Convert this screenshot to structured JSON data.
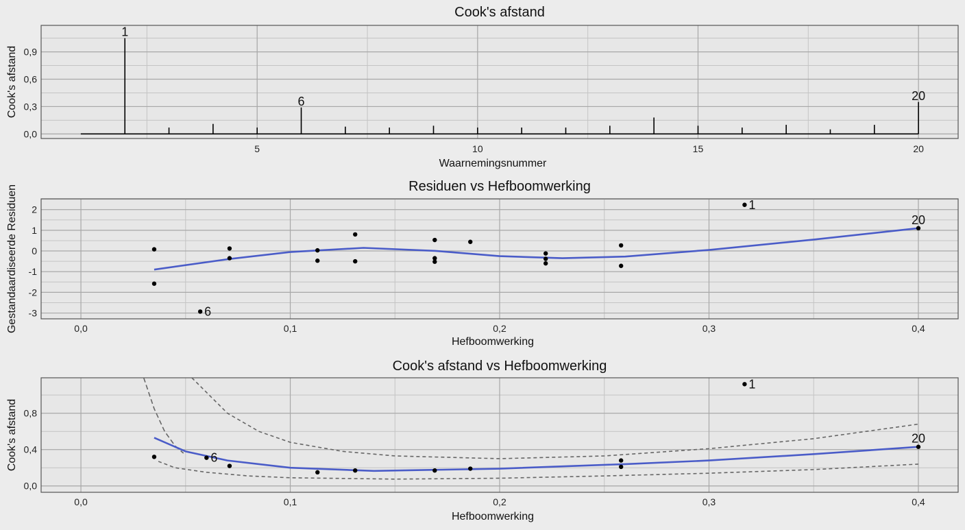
{
  "colors": {
    "background": "#ececec",
    "panel": "#e7e7e7",
    "smooth": "#4a5cc8",
    "points": "#000000",
    "contour": "#666666"
  },
  "chart_data": [
    {
      "type": "bar",
      "title": "Cook's afstand",
      "xlabel": "Waarnemingsnummer",
      "ylabel": "Cook's afstand",
      "xlim": [
        0.1,
        20.9
      ],
      "ylim": [
        -0.05,
        1.19
      ],
      "grid": true,
      "xticks": [
        {
          "v": 5,
          "label": "5"
        },
        {
          "v": 10,
          "label": "10"
        },
        {
          "v": 15,
          "label": "15"
        },
        {
          "v": 20,
          "label": "20"
        }
      ],
      "yticks": [
        {
          "v": 0,
          "label": "0,0"
        },
        {
          "v": 0.3,
          "label": "0,3"
        },
        {
          "v": 0.6,
          "label": "0,6"
        },
        {
          "v": 0.9,
          "label": "0,9"
        }
      ],
      "x": [
        1,
        2,
        3,
        4,
        5,
        6,
        7,
        8,
        9,
        10,
        11,
        12,
        13,
        14,
        15,
        16,
        17,
        18,
        19,
        20
      ],
      "values": [
        0.0,
        1.05,
        0.07,
        0.11,
        0.07,
        0.29,
        0.08,
        0.07,
        0.09,
        0.07,
        0.07,
        0.07,
        0.09,
        0.18,
        0.09,
        0.07,
        0.1,
        0.05,
        0.1,
        0.35
      ],
      "annotations": [
        {
          "x": 2,
          "y": 1.05,
          "label": "1"
        },
        {
          "x": 6,
          "y": 0.29,
          "label": "6"
        },
        {
          "x": 20,
          "y": 0.35,
          "label": "20"
        }
      ]
    },
    {
      "type": "scatter",
      "title": "Residuen vs Hefboomwerking",
      "xlabel": "Hefboomwerking",
      "ylabel": "Gestandaardiseerde Residuen",
      "xlim": [
        -0.019,
        0.419
      ],
      "ylim": [
        -3.28,
        2.52
      ],
      "grid": true,
      "xticks": [
        {
          "v": 0,
          "label": "0,0"
        },
        {
          "v": 0.1,
          "label": "0,1"
        },
        {
          "v": 0.2,
          "label": "0,2"
        },
        {
          "v": 0.3,
          "label": "0,3"
        },
        {
          "v": 0.4,
          "label": "0,4"
        }
      ],
      "yticks": [
        {
          "v": -3,
          "label": "-3"
        },
        {
          "v": -2,
          "label": "-2"
        },
        {
          "v": -1,
          "label": "-1"
        },
        {
          "v": 0,
          "label": "0"
        },
        {
          "v": 1,
          "label": "1"
        },
        {
          "v": 2,
          "label": "2"
        }
      ],
      "points": [
        [
          0.035,
          0.08
        ],
        [
          0.035,
          -1.58
        ],
        [
          0.057,
          -2.93
        ],
        [
          0.071,
          0.12
        ],
        [
          0.071,
          -0.35
        ],
        [
          0.113,
          0.03
        ],
        [
          0.113,
          -0.47
        ],
        [
          0.131,
          0.8
        ],
        [
          0.131,
          -0.5
        ],
        [
          0.169,
          0.53
        ],
        [
          0.169,
          -0.35
        ],
        [
          0.169,
          -0.52
        ],
        [
          0.186,
          0.44
        ],
        [
          0.222,
          -0.12
        ],
        [
          0.222,
          -0.38
        ],
        [
          0.222,
          -0.6
        ],
        [
          0.258,
          0.27
        ],
        [
          0.258,
          -0.72
        ],
        [
          0.317,
          2.23
        ],
        [
          0.4,
          1.1
        ]
      ],
      "smooth": [
        [
          0.035,
          -0.9
        ],
        [
          0.07,
          -0.4
        ],
        [
          0.1,
          -0.05
        ],
        [
          0.135,
          0.15
        ],
        [
          0.17,
          0.0
        ],
        [
          0.2,
          -0.25
        ],
        [
          0.23,
          -0.35
        ],
        [
          0.26,
          -0.27
        ],
        [
          0.3,
          0.05
        ],
        [
          0.35,
          0.55
        ],
        [
          0.4,
          1.1
        ]
      ],
      "annotations": [
        {
          "x": 0.057,
          "y": -2.93,
          "label": "6"
        },
        {
          "x": 0.317,
          "y": 2.23,
          "label": "1"
        },
        {
          "x": 0.4,
          "y": 1.1,
          "label": "20"
        }
      ]
    },
    {
      "type": "scatter",
      "title": "Cook's afstand vs Hefboomwerking",
      "xlabel": "Hefboomwerking",
      "ylabel": "Cook's afstand",
      "xlim": [
        -0.019,
        0.419
      ],
      "ylim": [
        -0.07,
        1.19
      ],
      "grid": true,
      "xticks": [
        {
          "v": 0,
          "label": "0,0"
        },
        {
          "v": 0.1,
          "label": "0,1"
        },
        {
          "v": 0.2,
          "label": "0,2"
        },
        {
          "v": 0.3,
          "label": "0,3"
        },
        {
          "v": 0.4,
          "label": "0,4"
        }
      ],
      "yticks": [
        {
          "v": 0,
          "label": "0,0"
        },
        {
          "v": 0.4,
          "label": "0,4"
        },
        {
          "v": 0.8,
          "label": "0,8"
        }
      ],
      "points": [
        [
          0.035,
          0.32
        ],
        [
          0.06,
          0.31
        ],
        [
          0.071,
          0.22
        ],
        [
          0.113,
          0.15
        ],
        [
          0.131,
          0.17
        ],
        [
          0.169,
          0.17
        ],
        [
          0.186,
          0.19
        ],
        [
          0.258,
          0.28
        ],
        [
          0.258,
          0.21
        ],
        [
          0.317,
          1.12
        ],
        [
          0.4,
          0.43
        ]
      ],
      "smooth": [
        [
          0.035,
          0.53
        ],
        [
          0.05,
          0.38
        ],
        [
          0.07,
          0.28
        ],
        [
          0.1,
          0.2
        ],
        [
          0.14,
          0.165
        ],
        [
          0.2,
          0.19
        ],
        [
          0.26,
          0.24
        ],
        [
          0.3,
          0.28
        ],
        [
          0.35,
          0.35
        ],
        [
          0.4,
          0.43
        ]
      ],
      "contours": [
        [
          [
            0.037,
            0.27
          ],
          [
            0.045,
            0.2
          ],
          [
            0.06,
            0.15
          ],
          [
            0.08,
            0.11
          ],
          [
            0.1,
            0.09
          ],
          [
            0.15,
            0.075
          ],
          [
            0.2,
            0.085
          ],
          [
            0.25,
            0.11
          ],
          [
            0.3,
            0.14
          ],
          [
            0.35,
            0.18
          ],
          [
            0.4,
            0.24
          ]
        ],
        [
          [
            0.053,
            1.19
          ],
          [
            0.07,
            0.8
          ],
          [
            0.085,
            0.6
          ],
          [
            0.1,
            0.48
          ],
          [
            0.125,
            0.38
          ],
          [
            0.15,
            0.33
          ],
          [
            0.2,
            0.3
          ],
          [
            0.25,
            0.33
          ],
          [
            0.3,
            0.41
          ],
          [
            0.35,
            0.52
          ],
          [
            0.4,
            0.68
          ]
        ],
        [
          [
            0.03,
            1.19
          ],
          [
            0.035,
            0.85
          ],
          [
            0.04,
            0.6
          ],
          [
            0.045,
            0.44
          ],
          [
            0.049,
            0.36
          ]
        ]
      ],
      "annotations": [
        {
          "x": 0.06,
          "y": 0.31,
          "label": "6"
        },
        {
          "x": 0.317,
          "y": 1.12,
          "label": "1"
        },
        {
          "x": 0.4,
          "y": 0.43,
          "label": "20"
        }
      ]
    }
  ]
}
